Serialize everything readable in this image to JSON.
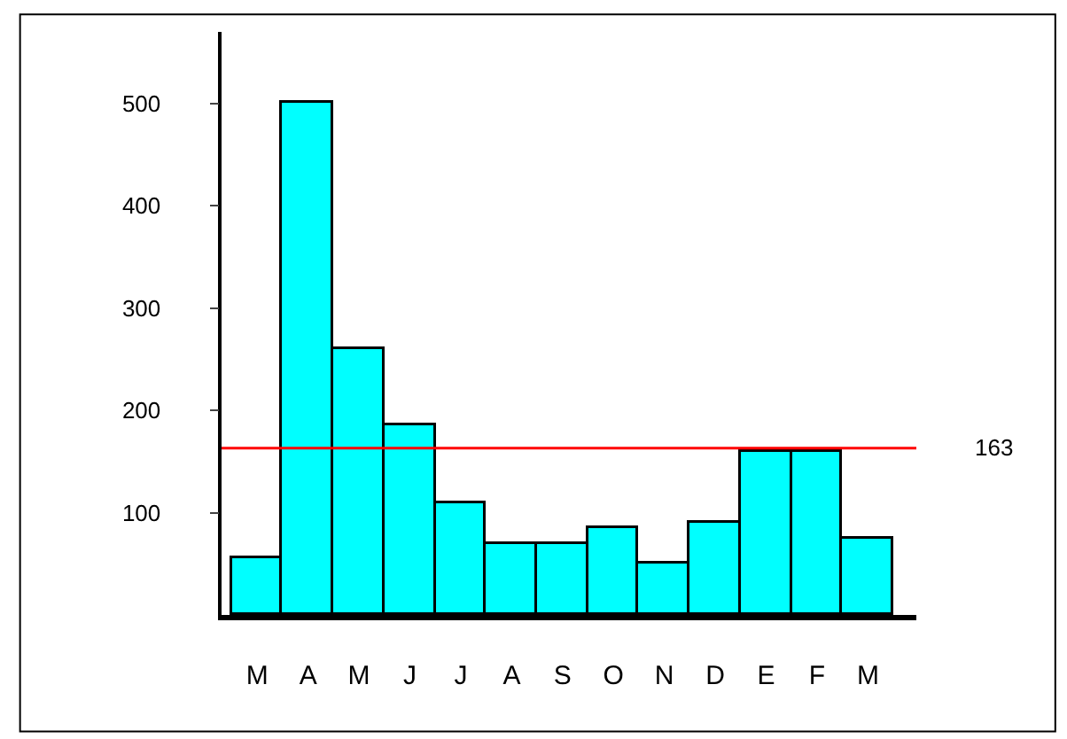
{
  "chart_data": {
    "type": "bar",
    "categories": [
      "M",
      "A",
      "M",
      "J",
      "J",
      "A",
      "S",
      "O",
      "N",
      "D",
      "E",
      "F",
      "M"
    ],
    "values": [
      55,
      500,
      260,
      185,
      110,
      70,
      70,
      85,
      50,
      90,
      160,
      160,
      75
    ],
    "color": "#00ffff",
    "ylim": [
      0,
      570
    ],
    "yticks": [
      100,
      200,
      300,
      400,
      500
    ],
    "ref_lines": [
      {
        "axis": "y",
        "value": 163,
        "label": "163",
        "color": "#ff0000"
      }
    ]
  }
}
